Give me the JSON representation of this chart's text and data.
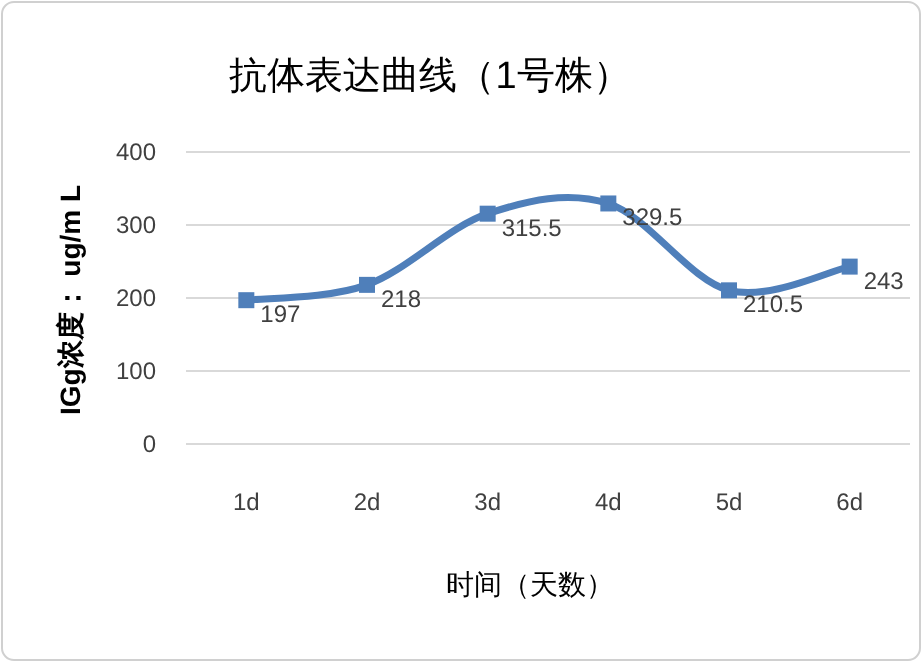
{
  "chart_data": {
    "type": "line",
    "title": "抗体表达曲线（1号株）",
    "xlabel": "时间（天数）",
    "ylabel": "IGg浓度： ug/m L",
    "categories": [
      "1d",
      "2d",
      "3d",
      "4d",
      "5d",
      "6d"
    ],
    "series": [
      {
        "color": "#4f7fba",
        "values": [
          197,
          218,
          315.5,
          329.5,
          210.5,
          243
        ]
      }
    ],
    "ylim": [
      0,
      400
    ],
    "yticks": [
      0,
      100,
      200,
      300,
      400
    ],
    "grid": "y",
    "marker": "square",
    "line_style": "solid",
    "data_labels": true
  }
}
